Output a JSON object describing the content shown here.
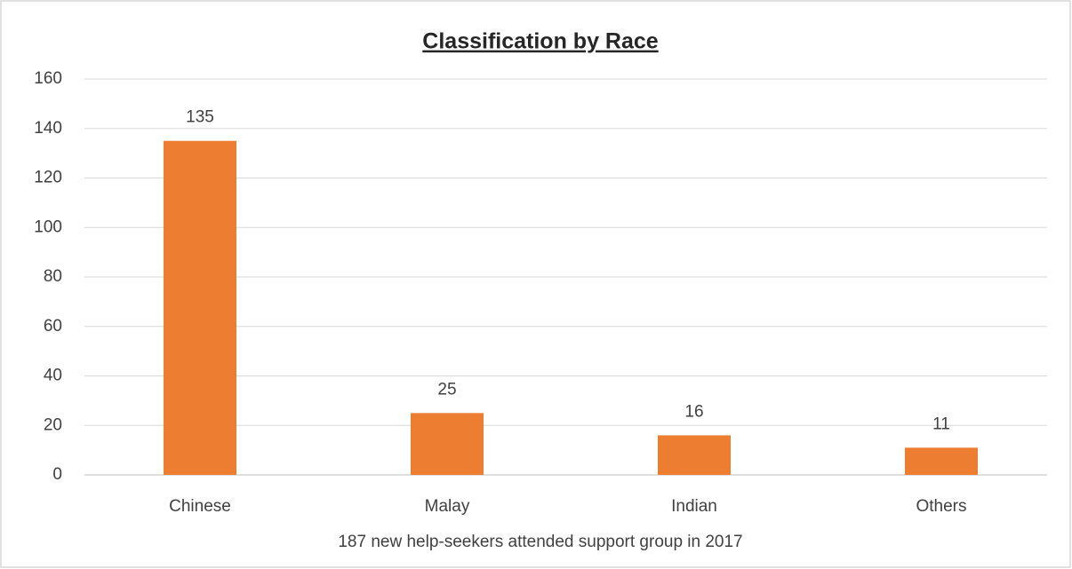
{
  "chart_data": {
    "type": "bar",
    "title": "Classification by Race",
    "x_label": "187 new help-seekers attended support group in 2017",
    "categories": [
      "Chinese",
      "Malay",
      "Indian",
      "Others"
    ],
    "values": [
      135,
      25,
      16,
      11
    ],
    "color": "#ed7d31",
    "ylim": [
      0,
      160
    ],
    "yticks": [
      0,
      20,
      40,
      60,
      80,
      100,
      120,
      140,
      160
    ],
    "grid": true
  }
}
